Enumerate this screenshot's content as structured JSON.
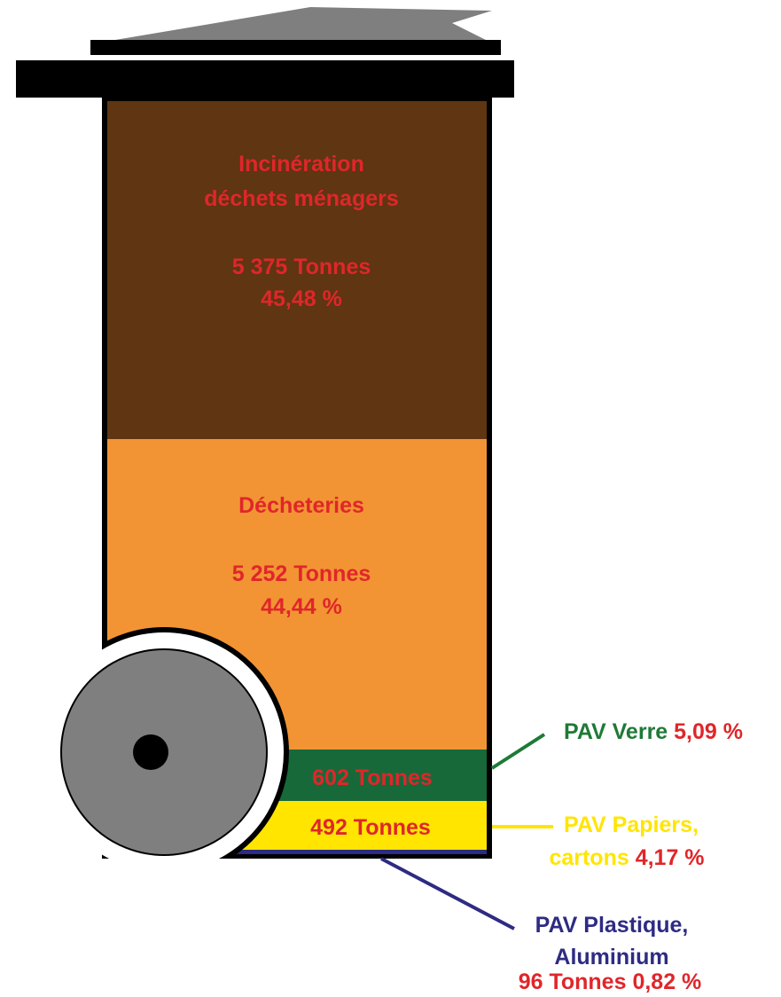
{
  "segments": [
    {
      "label_lines": [
        "Incinération",
        "déchets ménagers"
      ],
      "tonnes": "5 375 Tonnes",
      "percent": "45,48 %"
    },
    {
      "label": "Décheteries",
      "tonnes": "5 252 Tonnes",
      "percent": "44,44 %"
    },
    {
      "label": "PAV Verre",
      "tonnes": "602 Tonnes",
      "percent": "5,09 %"
    },
    {
      "label_lines": [
        "PAV Papiers,",
        "cartons"
      ],
      "tonnes": "492 Tonnes",
      "percent": "4,17 %"
    },
    {
      "label_lines": [
        "PAV Plastique,",
        "Aluminium"
      ],
      "tonnes": "96 Tonnes",
      "percent": "0,82 %"
    }
  ]
}
